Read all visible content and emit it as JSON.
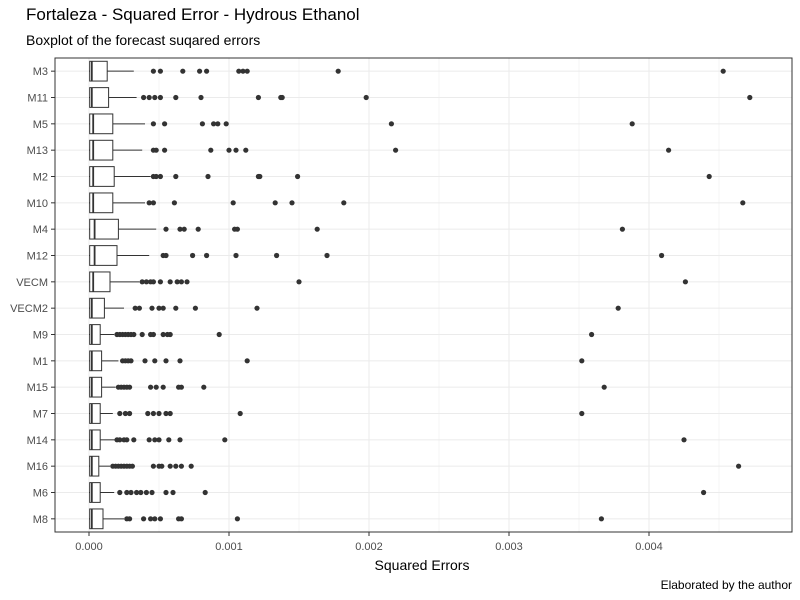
{
  "title": "Fortaleza - Squared Error - Hydrous Ethanol",
  "subtitle": "Boxplot of the forecast suqared errors",
  "caption": "Elaborated by the author",
  "chart_data": {
    "type": "boxplot",
    "title": "Fortaleza - Squared Error - Hydrous Ethanol",
    "subtitle": "Boxplot of the forecast suqared errors",
    "xlabel": "Squared Errors",
    "ylabel": "",
    "xlim": [
      -0.00025,
      0.00476
    ],
    "xticks": [
      0,
      0.001,
      0.002,
      0.003,
      0.004
    ],
    "xtick_labels": [
      "0.000",
      "0.001",
      "0.002",
      "0.003",
      "0.004"
    ],
    "grid": true,
    "series": [
      {
        "category": "M3",
        "min": 0,
        "q1": 5e-06,
        "median": 2e-05,
        "q3": 0.00013,
        "whisker_high": 0.00032,
        "outliers": [
          0.00046,
          0.00051,
          0.00067,
          0.00079,
          0.00084,
          0.00107,
          0.0011,
          0.00113,
          0.00178,
          0.00453
        ]
      },
      {
        "category": "M11",
        "min": 0,
        "q1": 5e-06,
        "median": 2e-05,
        "q3": 0.00014,
        "whisker_high": 0.00034,
        "outliers": [
          0.00039,
          0.00043,
          0.00047,
          0.00051,
          0.00062,
          0.0008,
          0.00121,
          0.00137,
          0.00138,
          0.00198,
          0.00472
        ]
      },
      {
        "category": "M5",
        "min": 0,
        "q1": 5e-06,
        "median": 3e-05,
        "q3": 0.00017,
        "whisker_high": 0.0004,
        "outliers": [
          0.00046,
          0.00054,
          0.00081,
          0.00089,
          0.00092,
          0.00098,
          0.00216,
          0.00388
        ]
      },
      {
        "category": "M13",
        "min": 0,
        "q1": 5e-06,
        "median": 3e-05,
        "q3": 0.00017,
        "whisker_high": 0.00038,
        "outliers": [
          0.00046,
          0.00048,
          0.00054,
          0.00087,
          0.001,
          0.00105,
          0.00112,
          0.00219,
          0.00414
        ]
      },
      {
        "category": "M2",
        "min": 0,
        "q1": 5e-06,
        "median": 3e-05,
        "q3": 0.00018,
        "whisker_high": 0.00044,
        "outliers": [
          0.00046,
          0.00048,
          0.00051,
          0.00062,
          0.00085,
          0.00121,
          0.00122,
          0.00149,
          0.00443
        ]
      },
      {
        "category": "M10",
        "min": 0,
        "q1": 5e-06,
        "median": 3e-05,
        "q3": 0.00017,
        "whisker_high": 0.0004,
        "outliers": [
          0.00043,
          0.00046,
          0.00061,
          0.00103,
          0.00133,
          0.00145,
          0.00182,
          0.00467
        ]
      },
      {
        "category": "M4",
        "min": 0,
        "q1": 5e-06,
        "median": 4e-05,
        "q3": 0.00021,
        "whisker_high": 0.00048,
        "outliers": [
          0.00055,
          0.00065,
          0.00068,
          0.00078,
          0.00104,
          0.00106,
          0.00163,
          0.00381
        ]
      },
      {
        "category": "M12",
        "min": 0,
        "q1": 5e-06,
        "median": 4e-05,
        "q3": 0.0002,
        "whisker_high": 0.00043,
        "outliers": [
          0.00053,
          0.00055,
          0.00074,
          0.00084,
          0.00105,
          0.00134,
          0.0017,
          0.00409
        ]
      },
      {
        "category": "VECM",
        "min": 0,
        "q1": 5e-06,
        "median": 3e-05,
        "q3": 0.00015,
        "whisker_high": 0.00036,
        "outliers": [
          0.00038,
          0.00041,
          0.00044,
          0.00046,
          0.00051,
          0.00058,
          0.00063,
          0.00066,
          0.0007,
          0.0015,
          0.00426
        ]
      },
      {
        "category": "VECM2",
        "min": 0,
        "q1": 5e-06,
        "median": 2e-05,
        "q3": 0.00011,
        "whisker_high": 0.00025,
        "outliers": [
          0.00033,
          0.00036,
          0.00045,
          0.0005,
          0.00053,
          0.00062,
          0.00076,
          0.0012,
          0.00378
        ]
      },
      {
        "category": "M9",
        "min": 0,
        "q1": 5e-06,
        "median": 2e-05,
        "q3": 8e-05,
        "whisker_high": 0.00018,
        "outliers": [
          0.0002,
          0.00022,
          0.00024,
          0.00026,
          0.00028,
          0.0003,
          0.00032,
          0.00038,
          0.00044,
          0.00046,
          0.00053,
          0.00056,
          0.00058,
          0.00093,
          0.00359
        ]
      },
      {
        "category": "M1",
        "min": 0,
        "q1": 5e-06,
        "median": 2e-05,
        "q3": 9e-05,
        "whisker_high": 0.00021,
        "outliers": [
          0.00024,
          0.00026,
          0.00028,
          0.0003,
          0.0004,
          0.00047,
          0.00055,
          0.00065,
          0.00113,
          0.00352
        ]
      },
      {
        "category": "M15",
        "min": 0,
        "q1": 5e-06,
        "median": 2e-05,
        "q3": 9e-05,
        "whisker_high": 0.00019,
        "outliers": [
          0.00021,
          0.00023,
          0.00025,
          0.00027,
          0.00029,
          0.00044,
          0.00048,
          0.00053,
          0.00064,
          0.00066,
          0.00082,
          0.00368
        ]
      },
      {
        "category": "M7",
        "min": 0,
        "q1": 5e-06,
        "median": 2e-05,
        "q3": 8e-05,
        "whisker_high": 0.00017,
        "outliers": [
          0.00022,
          0.00026,
          0.00029,
          0.00042,
          0.00046,
          0.0005,
          0.00055,
          0.00058,
          0.00108,
          0.00352
        ]
      },
      {
        "category": "M14",
        "min": 0,
        "q1": 5e-06,
        "median": 2e-05,
        "q3": 8e-05,
        "whisker_high": 0.00019,
        "outliers": [
          0.0002,
          0.00022,
          0.00025,
          0.00027,
          0.00032,
          0.00043,
          0.00047,
          0.0005,
          0.00057,
          0.00065,
          0.00097,
          0.00425
        ]
      },
      {
        "category": "M16",
        "min": 0,
        "q1": 5e-06,
        "median": 2e-05,
        "q3": 7e-05,
        "whisker_high": 0.00015,
        "outliers": [
          0.00017,
          0.00019,
          0.00021,
          0.00023,
          0.00025,
          0.00027,
          0.00029,
          0.00031,
          0.00046,
          0.0005,
          0.00052,
          0.00058,
          0.00062,
          0.00066,
          0.00073,
          0.00464
        ]
      },
      {
        "category": "M6",
        "min": 0,
        "q1": 5e-06,
        "median": 2e-05,
        "q3": 8e-05,
        "whisker_high": 0.00018,
        "outliers": [
          0.00022,
          0.00027,
          0.0003,
          0.00034,
          0.00037,
          0.00041,
          0.00045,
          0.00055,
          0.0006,
          0.00083,
          0.00439
        ]
      },
      {
        "category": "M8",
        "min": 0,
        "q1": 5e-06,
        "median": 2e-05,
        "q3": 0.0001,
        "whisker_high": 0.00025,
        "outliers": [
          0.00027,
          0.00029,
          0.00039,
          0.00044,
          0.00047,
          0.00051,
          0.00064,
          0.00066,
          0.00106,
          0.00366
        ]
      }
    ]
  }
}
